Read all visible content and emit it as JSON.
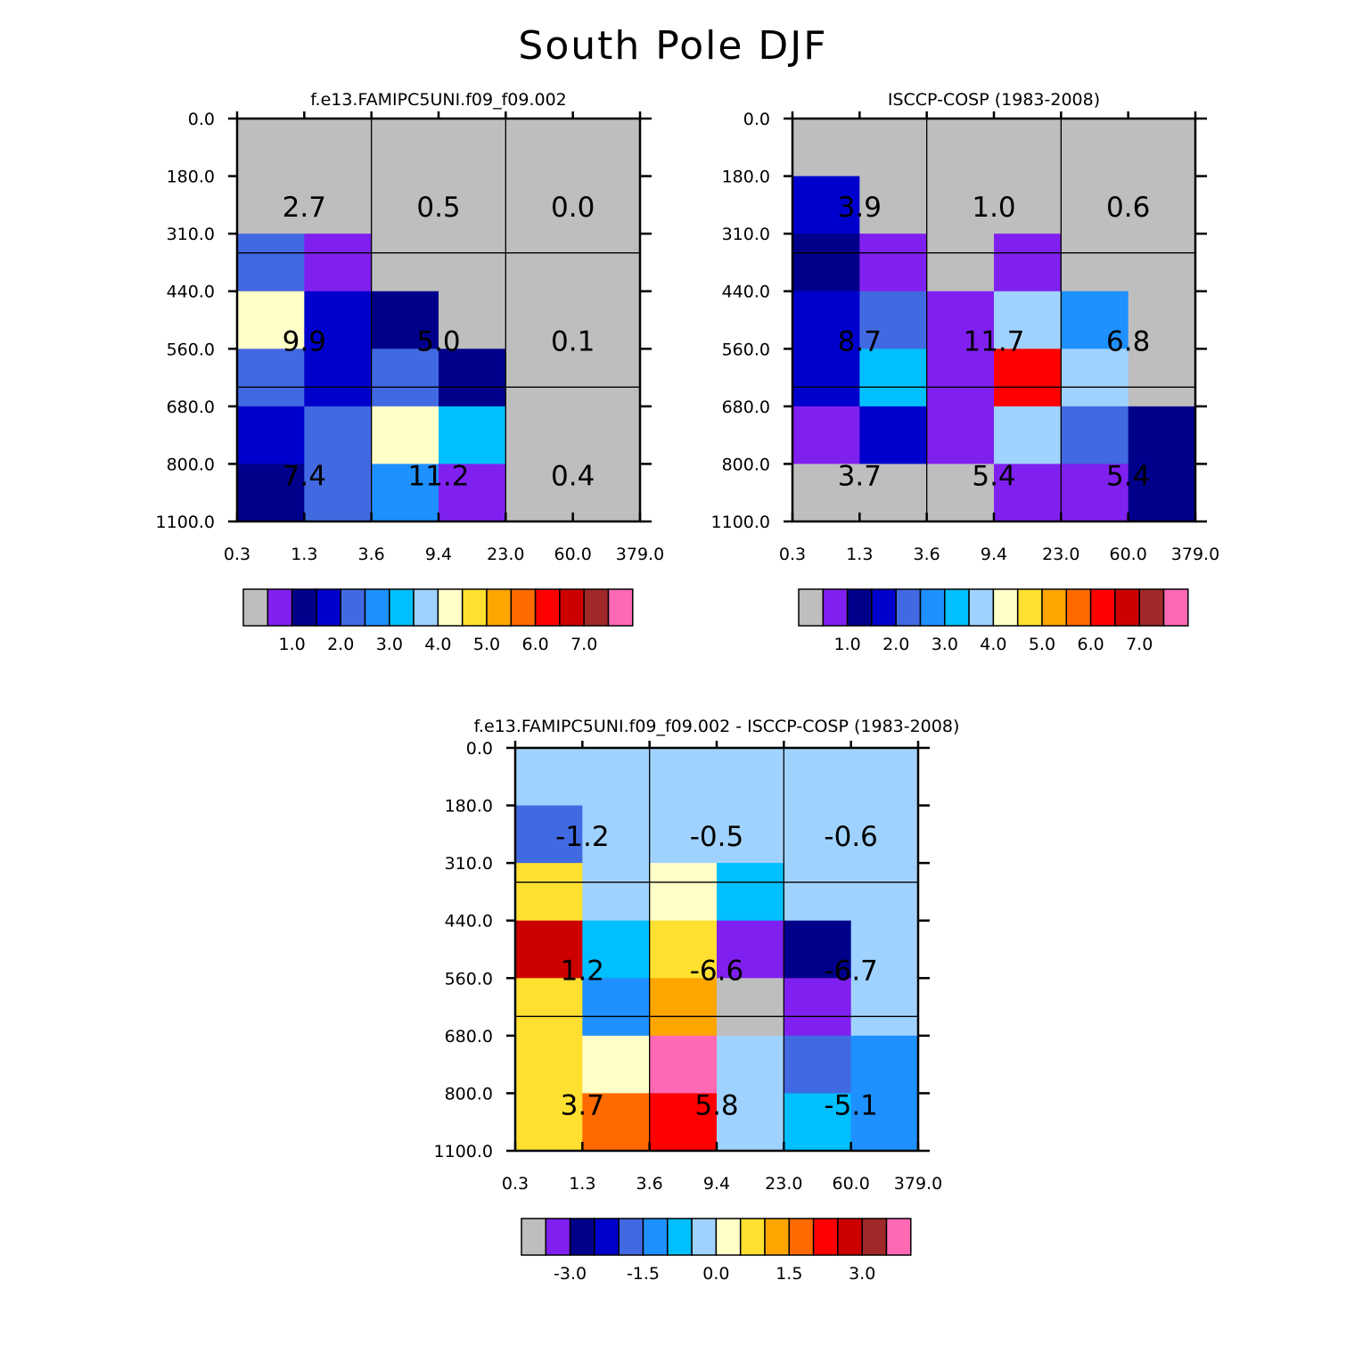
{
  "title": "South Pole DJF",
  "axes": {
    "x_ticks": [
      "0.3",
      "1.3",
      "3.6",
      "9.4",
      "23.0",
      "60.0",
      "379.0"
    ],
    "y_ticks": [
      "0.0",
      "180.0",
      "310.0",
      "440.0",
      "560.0",
      "680.0",
      "800.0",
      "1100.0"
    ]
  },
  "palette": [
    "#bebebe",
    "#8020f0",
    "#00008b",
    "#0000cd",
    "#4169e1",
    "#1e90ff",
    "#00bfff",
    "#a0d2ff",
    "#ffffc8",
    "#ffe030",
    "#ffa500",
    "#ff6a00",
    "#ff0000",
    "#cd0000",
    "#a02828",
    "#ff69b4"
  ],
  "chart_data": [
    {
      "type": "heatmap",
      "title": "f.e13.FAMIPC5UNI.f09_f09.002",
      "colorbar_labels": [
        "1.0",
        "2.0",
        "3.0",
        "4.0",
        "5.0",
        "6.0",
        "7.0"
      ],
      "cells": [
        [
          0,
          0,
          0,
          0,
          0,
          0
        ],
        [
          0,
          0,
          0,
          0,
          0,
          0
        ],
        [
          4,
          1,
          0,
          0,
          0,
          0
        ],
        [
          8,
          3,
          2,
          0,
          0,
          0
        ],
        [
          4,
          3,
          4,
          2,
          0,
          0
        ],
        [
          3,
          4,
          8,
          6,
          0,
          0
        ],
        [
          2,
          4,
          5,
          1,
          0,
          0
        ]
      ],
      "block_values": [
        [
          "2.7",
          "0.5",
          "0.0"
        ],
        [
          "9.9",
          "5.0",
          "0.1"
        ],
        [
          "7.4",
          "11.2",
          "0.4"
        ]
      ]
    },
    {
      "type": "heatmap",
      "title": "ISCCP-COSP (1983-2008)",
      "colorbar_labels": [
        "1.0",
        "2.0",
        "3.0",
        "4.0",
        "5.0",
        "6.0",
        "7.0"
      ],
      "cells": [
        [
          0,
          0,
          0,
          0,
          0,
          0
        ],
        [
          3,
          0,
          0,
          0,
          0,
          0
        ],
        [
          2,
          1,
          0,
          1,
          0,
          0
        ],
        [
          3,
          4,
          1,
          7,
          5,
          0
        ],
        [
          3,
          6,
          1,
          12,
          7,
          0
        ],
        [
          1,
          3,
          1,
          7,
          4,
          2
        ],
        [
          0,
          0,
          0,
          1,
          1,
          2
        ]
      ],
      "block_values": [
        [
          "3.9",
          "1.0",
          "0.6"
        ],
        [
          "8.7",
          "11.7",
          "6.8"
        ],
        [
          "3.7",
          "5.4",
          "5.4"
        ]
      ]
    },
    {
      "type": "heatmap",
      "title": "f.e13.FAMIPC5UNI.f09_f09.002 - ISCCP-COSP (1983-2008)",
      "colorbar_labels": [
        "-3.0",
        "-1.5",
        "0.0",
        "1.5",
        "3.0"
      ],
      "cells": [
        [
          7,
          7,
          7,
          7,
          7,
          7
        ],
        [
          4,
          7,
          7,
          7,
          7,
          7
        ],
        [
          9,
          7,
          8,
          6,
          7,
          7
        ],
        [
          13,
          6,
          9,
          1,
          2,
          7
        ],
        [
          9,
          5,
          10,
          0,
          1,
          7
        ],
        [
          9,
          8,
          15,
          7,
          4,
          5
        ],
        [
          9,
          11,
          12,
          7,
          6,
          5
        ]
      ],
      "block_values": [
        [
          "-1.2",
          "-0.5",
          "-0.6"
        ],
        [
          "1.2",
          "-6.6",
          "-6.7"
        ],
        [
          "3.7",
          "5.8",
          "-5.1"
        ]
      ]
    }
  ]
}
